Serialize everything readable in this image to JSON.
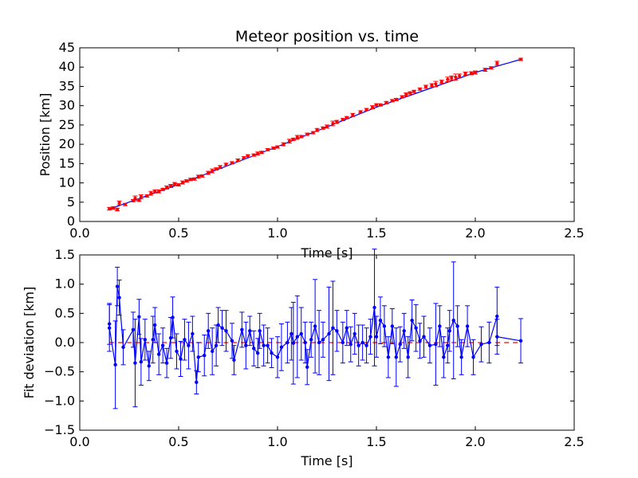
{
  "chart_data": [
    {
      "type": "line",
      "title": "Meteor position vs. time",
      "xlabel": "Time [s]",
      "ylabel": "Position [km]",
      "xlim": [
        0.0,
        2.5
      ],
      "ylim": [
        0,
        45
      ],
      "xticks": [
        "0.0",
        "0.5",
        "1.0",
        "1.5",
        "2.0",
        "2.5"
      ],
      "yticks": [
        "0",
        "5",
        "10",
        "15",
        "20",
        "25",
        "30",
        "35",
        "40",
        "45"
      ],
      "grid": false,
      "series": [
        {
          "style": "blue fit line",
          "color": "#0000ff",
          "x": [
            0.15,
            0.5,
            1.0,
            1.5,
            2.0,
            2.23
          ],
          "y": [
            3.2,
            9.6,
            19.4,
            29.6,
            38.6,
            42.0
          ]
        },
        {
          "style": "red points with error bars",
          "color": "#ff0000",
          "x": [
            0.15,
            0.17,
            0.19,
            0.2,
            0.23,
            0.27,
            0.28,
            0.3,
            0.31,
            0.34,
            0.36,
            0.38,
            0.4,
            0.42,
            0.44,
            0.46,
            0.48,
            0.5,
            0.52,
            0.54,
            0.56,
            0.58,
            0.6,
            0.62,
            0.65,
            0.67,
            0.69,
            0.71,
            0.74,
            0.77,
            0.8,
            0.83,
            0.85,
            0.88,
            0.9,
            0.92,
            0.95,
            0.98,
            1.0,
            1.03,
            1.06,
            1.08,
            1.1,
            1.12,
            1.15,
            1.18,
            1.2,
            1.23,
            1.25,
            1.28,
            1.3,
            1.33,
            1.35,
            1.38,
            1.42,
            1.45,
            1.48,
            1.5,
            1.52,
            1.55,
            1.58,
            1.6,
            1.63,
            1.65,
            1.67,
            1.69,
            1.72,
            1.75,
            1.78,
            1.8,
            1.83,
            1.86,
            1.88,
            1.9,
            1.92,
            1.95,
            1.98,
            2.0,
            2.05,
            2.08,
            2.11,
            2.23
          ],
          "y": [
            3.3,
            3.5,
            3.1,
            4.8,
            4.4,
            5.4,
            6.0,
            5.5,
            6.4,
            6.6,
            7.3,
            7.8,
            7.8,
            8.3,
            8.8,
            9.2,
            9.7,
            9.5,
            10.1,
            10.5,
            10.9,
            11.0,
            11.6,
            11.8,
            12.6,
            13.1,
            13.6,
            14.1,
            14.8,
            15.2,
            15.9,
            16.5,
            17.0,
            17.2,
            17.6,
            17.9,
            18.6,
            19.0,
            19.3,
            20.0,
            20.8,
            21.3,
            21.8,
            22.0,
            22.6,
            23.0,
            23.7,
            24.2,
            24.6,
            25.4,
            25.8,
            26.4,
            26.9,
            27.6,
            28.4,
            29.0,
            29.6,
            30.2,
            30.2,
            30.8,
            31.3,
            31.6,
            32.3,
            32.9,
            33.3,
            33.7,
            34.3,
            34.9,
            35.3,
            35.6,
            36.2,
            36.8,
            37.2,
            37.4,
            37.7,
            38.3,
            38.4,
            38.6,
            39.3,
            39.8,
            41.0,
            42.0
          ],
          "err": [
            0.35,
            0.35,
            0.35,
            0.5,
            0.3,
            0.3,
            0.6,
            0.3,
            0.5,
            0.3,
            0.5,
            0.4,
            0.4,
            0.3,
            0.4,
            0.4,
            0.4,
            0.3,
            0.4,
            0.3,
            0.3,
            0.3,
            0.4,
            0.3,
            0.4,
            0.5,
            0.3,
            0.4,
            0.3,
            0.3,
            0.3,
            0.3,
            0.3,
            0.3,
            0.4,
            0.3,
            0.3,
            0.3,
            0.3,
            0.4,
            0.5,
            0.3,
            0.5,
            0.3,
            0.3,
            0.3,
            0.4,
            0.3,
            0.4,
            0.6,
            0.4,
            0.3,
            0.3,
            0.4,
            0.3,
            0.3,
            0.4,
            0.3,
            0.3,
            0.3,
            0.3,
            0.3,
            0.3,
            0.4,
            0.3,
            0.3,
            0.3,
            0.4,
            0.4,
            0.7,
            0.4,
            0.6,
            0.5,
            0.8,
            0.5,
            0.4,
            0.4,
            0.4,
            0.4,
            0.3,
            0.5,
            0.3
          ]
        }
      ]
    },
    {
      "type": "line",
      "title": "",
      "xlabel": "Time [s]",
      "ylabel": "Fit deviation [km]",
      "xlim": [
        0.0,
        2.5
      ],
      "ylim": [
        -1.5,
        1.5
      ],
      "xticks": [
        "0.0",
        "0.5",
        "1.0",
        "1.5",
        "2.0",
        "2.5"
      ],
      "yticks": [
        "−1.5",
        "−1.0",
        "−0.5",
        "0.0",
        "0.5",
        "1.0",
        "1.5"
      ],
      "grid": false,
      "reference_line": {
        "y": 0,
        "color": "#ff0000",
        "style": "dashed",
        "x_range": [
          0.15,
          2.23
        ]
      },
      "series": [
        {
          "style": "blue points with error bars",
          "color": "#0000ff",
          "x": [
            0.15,
            0.15,
            0.18,
            0.19,
            0.2,
            0.22,
            0.27,
            0.28,
            0.3,
            0.31,
            0.33,
            0.35,
            0.37,
            0.38,
            0.4,
            0.42,
            0.44,
            0.46,
            0.47,
            0.49,
            0.51,
            0.53,
            0.55,
            0.57,
            0.59,
            0.6,
            0.63,
            0.65,
            0.67,
            0.69,
            0.7,
            0.72,
            0.74,
            0.77,
            0.78,
            0.82,
            0.84,
            0.86,
            0.88,
            0.9,
            0.91,
            0.93,
            0.95,
            0.97,
            1.0,
            1.02,
            1.05,
            1.07,
            1.08,
            1.1,
            1.12,
            1.14,
            1.15,
            1.17,
            1.19,
            1.21,
            1.23,
            1.26,
            1.28,
            1.3,
            1.33,
            1.35,
            1.37,
            1.39,
            1.41,
            1.43,
            1.45,
            1.47,
            1.49,
            1.5,
            1.52,
            1.54,
            1.56,
            1.58,
            1.6,
            1.62,
            1.64,
            1.66,
            1.68,
            1.7,
            1.72,
            1.74,
            1.77,
            1.8,
            1.82,
            1.84,
            1.86,
            1.87,
            1.89,
            1.91,
            1.93,
            1.96,
            1.99,
            2.03,
            2.07,
            2.11,
            2.11,
            2.23
          ],
          "y": [
            0.32,
            0.25,
            -0.38,
            0.96,
            0.77,
            -0.08,
            0.22,
            -0.35,
            0.44,
            -0.33,
            0.05,
            -0.4,
            0.05,
            0.3,
            -0.2,
            -0.05,
            -0.35,
            0.08,
            0.43,
            -0.15,
            -0.28,
            0.05,
            -0.05,
            0.15,
            -0.68,
            -0.25,
            -0.22,
            0.2,
            -0.15,
            -0.05,
            0.3,
            0.25,
            0.2,
            0.03,
            -0.3,
            0.22,
            -0.05,
            0.2,
            -0.1,
            -0.18,
            0.2,
            -0.05,
            -0.05,
            -0.18,
            -0.25,
            -0.08,
            0.0,
            0.15,
            -0.01,
            0.1,
            0.15,
            0.0,
            -0.42,
            0.05,
            0.28,
            0.0,
            0.05,
            0.15,
            0.25,
            0.2,
            0.0,
            0.25,
            -0.03,
            0.15,
            -0.05,
            0.0,
            -0.05,
            0.1,
            0.6,
            0.1,
            0.38,
            0.28,
            -0.25,
            0.28,
            -0.25,
            -0.03,
            0.2,
            -0.25,
            0.38,
            0.25,
            0.03,
            0.1,
            -0.05,
            -0.03,
            0.28,
            -0.25,
            -0.05,
            0.2,
            0.38,
            0.28,
            -0.25,
            0.28,
            -0.25,
            -0.03,
            0.0,
            0.45,
            0.1,
            0.03
          ],
          "err": [
            0.35,
            0.4,
            0.75,
            0.33,
            0.3,
            0.3,
            0.3,
            0.75,
            0.3,
            0.4,
            0.35,
            0.25,
            0.4,
            0.3,
            0.35,
            0.3,
            0.25,
            0.35,
            0.35,
            0.3,
            0.3,
            0.35,
            0.4,
            0.3,
            0.2,
            0.25,
            0.35,
            0.3,
            0.4,
            0.35,
            0.3,
            0.3,
            0.35,
            0.3,
            0.25,
            0.3,
            0.4,
            0.25,
            0.3,
            0.25,
            0.3,
            0.35,
            0.3,
            0.25,
            0.35,
            0.4,
            0.35,
            0.45,
            0.7,
            0.7,
            0.45,
            0.35,
            0.3,
            0.3,
            0.8,
            0.55,
            0.3,
            0.8,
            0.8,
            0.35,
            0.35,
            0.3,
            0.3,
            0.35,
            0.35,
            0.3,
            0.3,
            0.3,
            1.0,
            0.35,
            0.4,
            0.35,
            0.35,
            0.3,
            0.5,
            0.3,
            0.3,
            0.35,
            0.35,
            0.4,
            0.3,
            0.35,
            0.3,
            0.7,
            0.35,
            0.35,
            0.3,
            0.35,
            1.0,
            0.35,
            0.3,
            0.35,
            0.3,
            0.3,
            0.35,
            0.5,
            0.3,
            0.38
          ]
        }
      ]
    }
  ]
}
